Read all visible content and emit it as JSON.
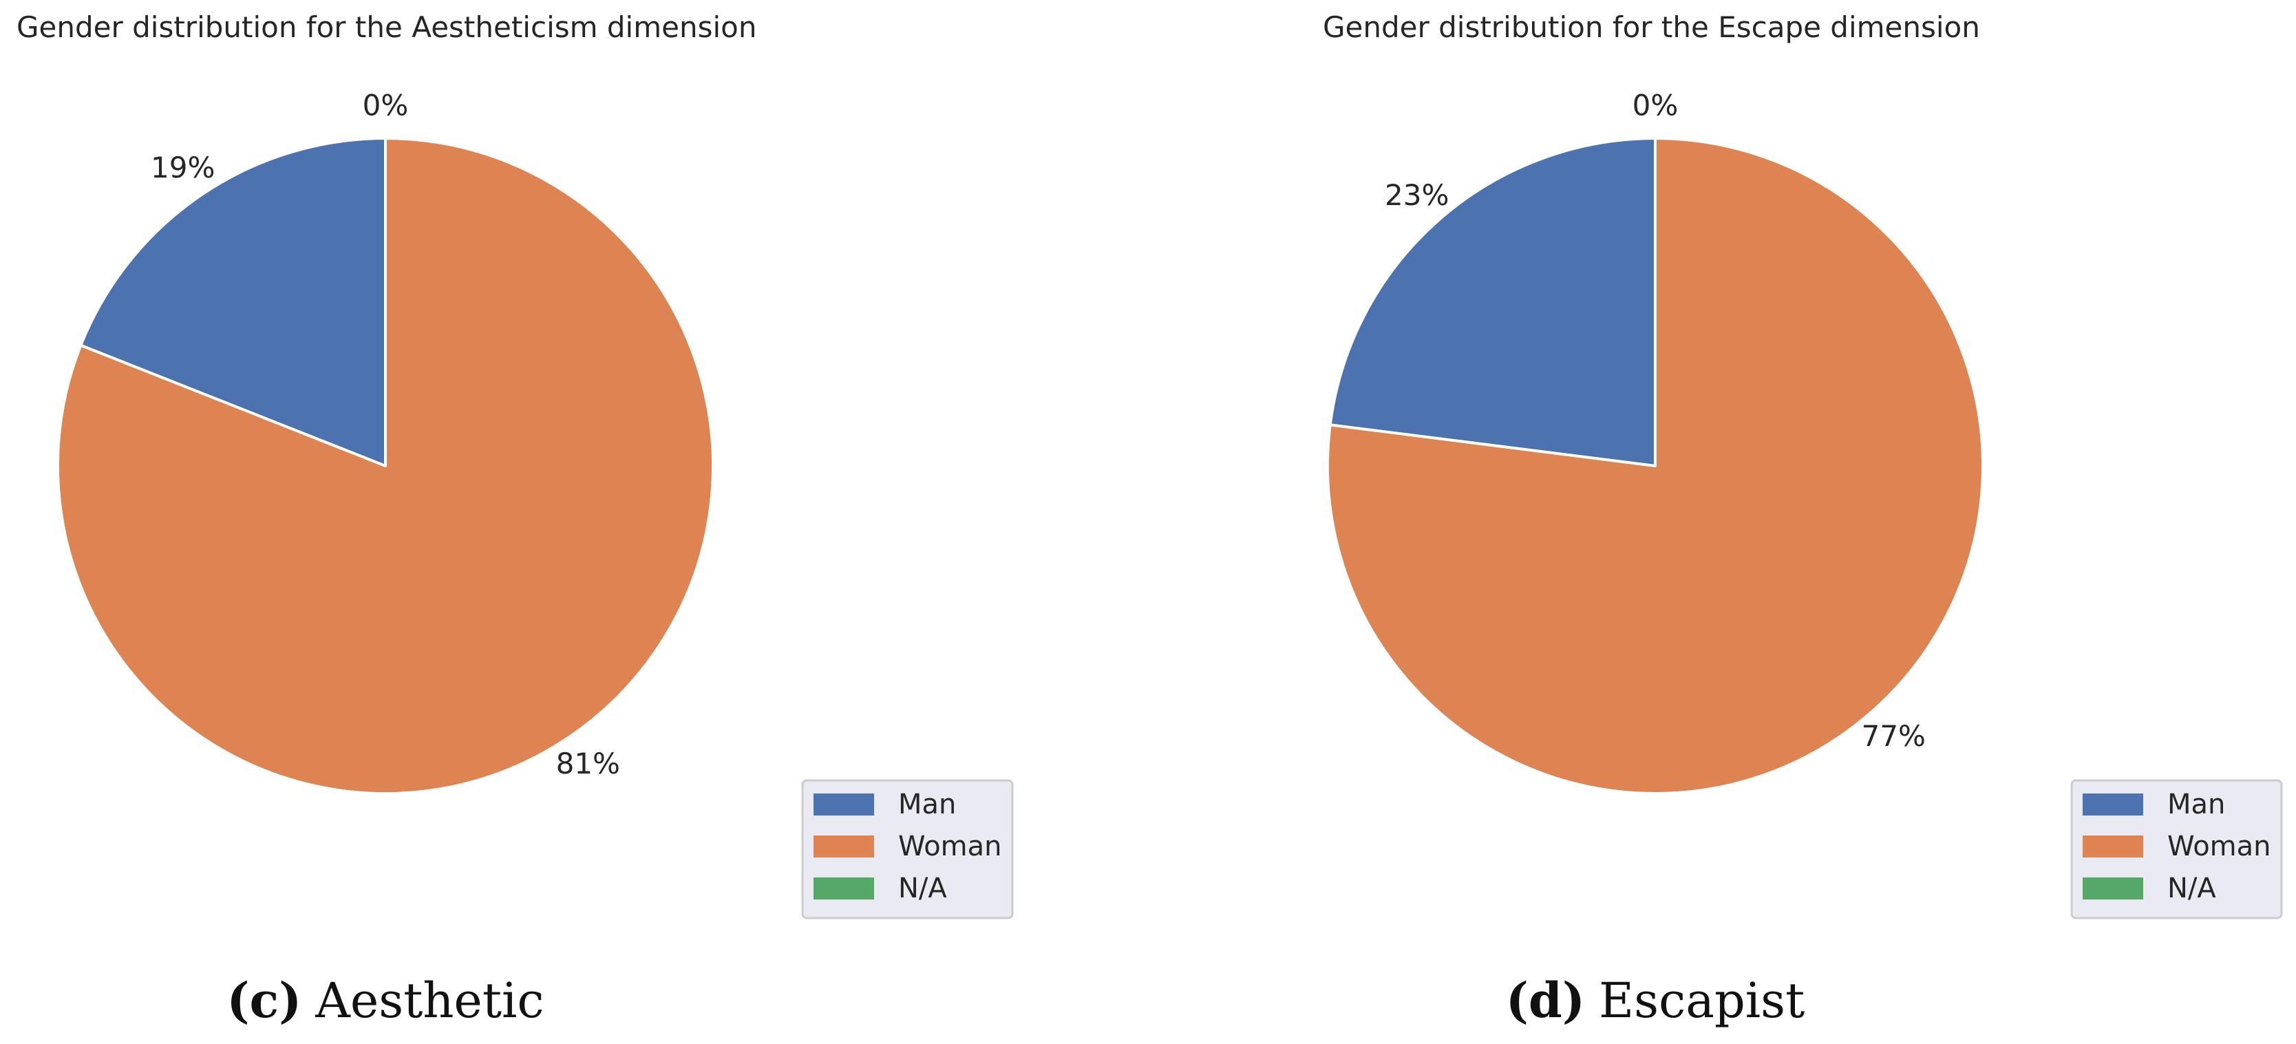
{
  "chart_data": [
    {
      "type": "pie",
      "title": "Gender distribution for the Aestheticism dimension",
      "categories": [
        "Man",
        "Woman",
        "N/A"
      ],
      "values": [
        19,
        81,
        0
      ],
      "labels": [
        "19%",
        "81%",
        "0%"
      ],
      "colors": [
        "#4c72b0",
        "#dd8452",
        "#55a868"
      ],
      "legend": {
        "position": "lower-right",
        "entries": [
          "Man",
          "Woman",
          "N/A"
        ]
      },
      "caption": {
        "tag": "(c)",
        "text": "Aesthetic"
      }
    },
    {
      "type": "pie",
      "title": "Gender distribution for the Escape dimension",
      "categories": [
        "Man",
        "Woman",
        "N/A"
      ],
      "values": [
        23,
        77,
        0
      ],
      "labels": [
        "23%",
        "77%",
        "0%"
      ],
      "colors": [
        "#4c72b0",
        "#dd8452",
        "#55a868"
      ],
      "legend": {
        "position": "lower-right",
        "entries": [
          "Man",
          "Woman",
          "N/A"
        ]
      },
      "caption": {
        "tag": "(d)",
        "text": "Escapist"
      }
    }
  ]
}
